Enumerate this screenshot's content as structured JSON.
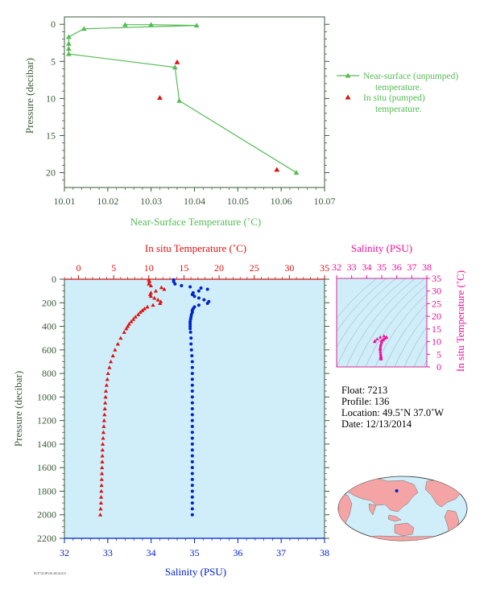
{
  "chart_data": [
    {
      "type": "line",
      "xlabel": "Near-Surface Temperature (˚C)",
      "ylabel": "Pressure (decibar)",
      "xlim": [
        10.01,
        10.07
      ],
      "ylim": [
        22,
        -1
      ],
      "xticks": [
        "10.01",
        "10.02",
        "10.03",
        "10.04",
        "10.05",
        "10.06",
        "10.07"
      ],
      "yticks": [
        "0",
        "5",
        "10",
        "15",
        "20"
      ],
      "series": [
        {
          "name": "Near-surface (unpumped) temperature.",
          "color": "#55bb55",
          "points": [
            {
              "x": 10.024,
              "y": 0.05
            },
            {
              "x": 10.03,
              "y": 0.05
            },
            {
              "x": 10.0405,
              "y": 0.15
            },
            {
              "x": 10.0145,
              "y": 0.6
            },
            {
              "x": 10.011,
              "y": 1.7
            },
            {
              "x": 10.011,
              "y": 2.6
            },
            {
              "x": 10.011,
              "y": 3.3
            },
            {
              "x": 10.011,
              "y": 4.0
            },
            {
              "x": 10.0355,
              "y": 5.8
            },
            {
              "x": 10.0365,
              "y": 10.3
            },
            {
              "x": 10.0635,
              "y": 20.0
            }
          ]
        },
        {
          "name": "In situ (pumped) temperature.",
          "color": "#dd1111",
          "points": [
            {
              "x": 10.036,
              "y": 5.1
            },
            {
              "x": 10.032,
              "y": 9.9
            },
            {
              "x": 10.059,
              "y": 19.6
            }
          ]
        }
      ]
    },
    {
      "type": "scatter",
      "ylabel": "Pressure (decibar)",
      "xlabel_top": "In situ Temperature (˚C)",
      "xlabel_bottom": "Salinity (PSU)",
      "ylim": [
        2200,
        0
      ],
      "temperature_xlim": [
        -2,
        35
      ],
      "salinity_xlim": [
        32,
        38
      ],
      "yticks": [
        "0",
        "200",
        "400",
        "600",
        "800",
        "1000",
        "1200",
        "1400",
        "1600",
        "1800",
        "2000",
        "2200"
      ],
      "temperature_ticks": [
        "0",
        "5",
        "10",
        "15",
        "20",
        "25",
        "30",
        "35"
      ],
      "salinity_ticks": [
        "32",
        "33",
        "34",
        "35",
        "36",
        "37",
        "38"
      ],
      "temperature": {
        "color": "#dd1111",
        "points": [
          {
            "p": 5,
            "v": 10.0
          },
          {
            "p": 20,
            "v": 10.1
          },
          {
            "p": 40,
            "v": 10.0
          },
          {
            "p": 55,
            "v": 10.3
          },
          {
            "p": 70,
            "v": 11.8
          },
          {
            "p": 85,
            "v": 12.2
          },
          {
            "p": 100,
            "v": 11.0
          },
          {
            "p": 115,
            "v": 10.3
          },
          {
            "p": 130,
            "v": 10.2
          },
          {
            "p": 145,
            "v": 10.3
          },
          {
            "p": 160,
            "v": 10.8
          },
          {
            "p": 175,
            "v": 11.3
          },
          {
            "p": 190,
            "v": 11.7
          },
          {
            "p": 205,
            "v": 11.6
          },
          {
            "p": 220,
            "v": 10.6
          },
          {
            "p": 235,
            "v": 9.8
          },
          {
            "p": 250,
            "v": 9.4
          },
          {
            "p": 265,
            "v": 9.1
          },
          {
            "p": 280,
            "v": 8.8
          },
          {
            "p": 300,
            "v": 8.5
          },
          {
            "p": 320,
            "v": 8.1
          },
          {
            "p": 340,
            "v": 7.8
          },
          {
            "p": 360,
            "v": 7.5
          },
          {
            "p": 380,
            "v": 7.2
          },
          {
            "p": 400,
            "v": 7.0
          },
          {
            "p": 420,
            "v": 6.8
          },
          {
            "p": 450,
            "v": 6.5
          },
          {
            "p": 500,
            "v": 6.0
          },
          {
            "p": 550,
            "v": 5.6
          },
          {
            "p": 600,
            "v": 5.2
          },
          {
            "p": 650,
            "v": 4.9
          },
          {
            "p": 700,
            "v": 4.6
          },
          {
            "p": 750,
            "v": 4.4
          },
          {
            "p": 800,
            "v": 4.2
          },
          {
            "p": 850,
            "v": 4.1
          },
          {
            "p": 900,
            "v": 4.0
          },
          {
            "p": 950,
            "v": 3.9
          },
          {
            "p": 1000,
            "v": 3.85
          },
          {
            "p": 1050,
            "v": 3.8
          },
          {
            "p": 1100,
            "v": 3.75
          },
          {
            "p": 1150,
            "v": 3.7
          },
          {
            "p": 1200,
            "v": 3.65
          },
          {
            "p": 1250,
            "v": 3.6
          },
          {
            "p": 1300,
            "v": 3.55
          },
          {
            "p": 1350,
            "v": 3.5
          },
          {
            "p": 1400,
            "v": 3.45
          },
          {
            "p": 1450,
            "v": 3.42
          },
          {
            "p": 1500,
            "v": 3.4
          },
          {
            "p": 1550,
            "v": 3.38
          },
          {
            "p": 1600,
            "v": 3.35
          },
          {
            "p": 1650,
            "v": 3.33
          },
          {
            "p": 1700,
            "v": 3.3
          },
          {
            "p": 1750,
            "v": 3.28
          },
          {
            "p": 1800,
            "v": 3.25
          },
          {
            "p": 1850,
            "v": 3.22
          },
          {
            "p": 1900,
            "v": 3.2
          },
          {
            "p": 1950,
            "v": 3.15
          },
          {
            "p": 2000,
            "v": 3.1
          }
        ]
      },
      "salinity": {
        "color": "#0022cc",
        "points": [
          {
            "p": 5,
            "v": 34.52
          },
          {
            "p": 20,
            "v": 34.52
          },
          {
            "p": 40,
            "v": 34.55
          },
          {
            "p": 55,
            "v": 34.7
          },
          {
            "p": 65,
            "v": 34.9
          },
          {
            "p": 75,
            "v": 35.15
          },
          {
            "p": 85,
            "v": 35.3
          },
          {
            "p": 100,
            "v": 35.1
          },
          {
            "p": 115,
            "v": 34.97
          },
          {
            "p": 130,
            "v": 34.95
          },
          {
            "p": 145,
            "v": 35.0
          },
          {
            "p": 160,
            "v": 35.1
          },
          {
            "p": 175,
            "v": 35.22
          },
          {
            "p": 190,
            "v": 35.33
          },
          {
            "p": 205,
            "v": 35.3
          },
          {
            "p": 220,
            "v": 35.1
          },
          {
            "p": 235,
            "v": 35.0
          },
          {
            "p": 250,
            "v": 34.97
          },
          {
            "p": 265,
            "v": 34.95
          },
          {
            "p": 280,
            "v": 34.95
          },
          {
            "p": 300,
            "v": 34.93
          },
          {
            "p": 320,
            "v": 34.92
          },
          {
            "p": 340,
            "v": 34.91
          },
          {
            "p": 360,
            "v": 34.9
          },
          {
            "p": 380,
            "v": 34.9
          },
          {
            "p": 400,
            "v": 34.9
          },
          {
            "p": 420,
            "v": 34.9
          },
          {
            "p": 450,
            "v": 34.91
          },
          {
            "p": 500,
            "v": 34.92
          },
          {
            "p": 550,
            "v": 34.92
          },
          {
            "p": 600,
            "v": 34.93
          },
          {
            "p": 650,
            "v": 34.94
          },
          {
            "p": 700,
            "v": 34.95
          },
          {
            "p": 750,
            "v": 34.95
          },
          {
            "p": 800,
            "v": 34.95
          },
          {
            "p": 850,
            "v": 34.95
          },
          {
            "p": 900,
            "v": 34.95
          },
          {
            "p": 950,
            "v": 34.95
          },
          {
            "p": 1000,
            "v": 34.95
          },
          {
            "p": 1050,
            "v": 34.95
          },
          {
            "p": 1100,
            "v": 34.95
          },
          {
            "p": 1150,
            "v": 34.95
          },
          {
            "p": 1200,
            "v": 34.95
          },
          {
            "p": 1250,
            "v": 34.95
          },
          {
            "p": 1300,
            "v": 34.95
          },
          {
            "p": 1350,
            "v": 34.95
          },
          {
            "p": 1400,
            "v": 34.95
          },
          {
            "p": 1450,
            "v": 34.95
          },
          {
            "p": 1500,
            "v": 34.95
          },
          {
            "p": 1550,
            "v": 34.95
          },
          {
            "p": 1600,
            "v": 34.95
          },
          {
            "p": 1650,
            "v": 34.95
          },
          {
            "p": 1700,
            "v": 34.95
          },
          {
            "p": 1750,
            "v": 34.95
          },
          {
            "p": 1800,
            "v": 34.95
          },
          {
            "p": 1850,
            "v": 34.95
          },
          {
            "p": 1900,
            "v": 34.95
          },
          {
            "p": 1950,
            "v": 34.95
          },
          {
            "p": 2000,
            "v": 34.95
          }
        ]
      }
    },
    {
      "type": "scatter",
      "xlabel": "Salinity (PSU)",
      "ylabel": "In situ Temperature (˚C)",
      "xlim": [
        32,
        38
      ],
      "ylim": [
        0,
        35
      ],
      "xticks": [
        "32",
        "33",
        "34",
        "35",
        "36",
        "37",
        "38"
      ],
      "yticks": [
        "0",
        "5",
        "10",
        "15",
        "20",
        "25",
        "30",
        "35"
      ],
      "color": "#ee1199",
      "points": [
        {
          "x": 34.52,
          "y": 10.0
        },
        {
          "x": 34.55,
          "y": 10.3
        },
        {
          "x": 34.7,
          "y": 11.0
        },
        {
          "x": 34.9,
          "y": 11.8
        },
        {
          "x": 35.15,
          "y": 12.2
        },
        {
          "x": 35.3,
          "y": 11.8
        },
        {
          "x": 35.1,
          "y": 11.0
        },
        {
          "x": 34.97,
          "y": 10.3
        },
        {
          "x": 35.22,
          "y": 11.3
        },
        {
          "x": 35.33,
          "y": 11.7
        },
        {
          "x": 35.1,
          "y": 10.6
        },
        {
          "x": 35.0,
          "y": 9.8
        },
        {
          "x": 34.95,
          "y": 9.1
        },
        {
          "x": 34.93,
          "y": 8.5
        },
        {
          "x": 34.91,
          "y": 7.8
        },
        {
          "x": 34.9,
          "y": 7.2
        },
        {
          "x": 34.9,
          "y": 6.8
        },
        {
          "x": 34.91,
          "y": 6.0
        },
        {
          "x": 34.92,
          "y": 5.2
        },
        {
          "x": 34.94,
          "y": 4.6
        },
        {
          "x": 34.95,
          "y": 4.1
        },
        {
          "x": 34.95,
          "y": 3.8
        },
        {
          "x": 34.95,
          "y": 3.5
        },
        {
          "x": 34.95,
          "y": 3.3
        },
        {
          "x": 34.95,
          "y": 3.1
        }
      ]
    }
  ],
  "float_info": {
    "float": "Float:  7213",
    "profile": "Profile:  136",
    "location": "Location:  49.5˚N  37.0˚W",
    "date": "Date:  12/13/2014"
  },
  "map": {
    "ocean_color": "#cfeefa",
    "land_color": "#f4a4a4",
    "marker_color": "#0022cc",
    "marker_lat": 49.5,
    "marker_lon": -37.0
  },
  "footer_code": "FLT7213P136 20141213"
}
